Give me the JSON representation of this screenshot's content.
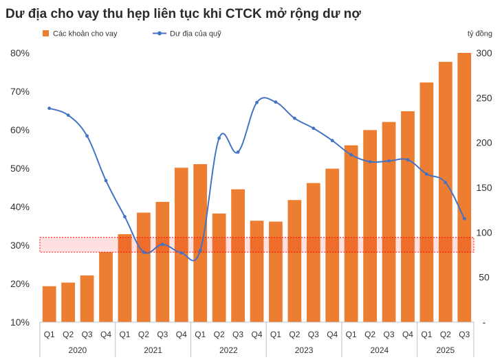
{
  "chart_data": {
    "type": "bar",
    "title": "Dư địa cho vay thu hẹp liên tục khi CTCK mở rộng dư nợ",
    "y2_unit_label": "tỷ đồng",
    "legend": [
      "Các khoản cho vay",
      "Dư địa của quỹ"
    ],
    "categories": [
      "Q1",
      "Q2",
      "Q3",
      "Q4",
      "Q1",
      "Q2",
      "Q3",
      "Q4",
      "Q1",
      "Q2",
      "Q3",
      "Q4",
      "Q1",
      "Q2",
      "Q3",
      "Q4",
      "Q1",
      "Q2",
      "Q3",
      "Q4",
      "Q1",
      "Q2",
      "Q3"
    ],
    "years": [
      {
        "label": "2020",
        "count": 4
      },
      {
        "label": "2021",
        "count": 4
      },
      {
        "label": "2022",
        "count": 4
      },
      {
        "label": "2023",
        "count": 4
      },
      {
        "label": "2024",
        "count": 4
      },
      {
        "label": "2025",
        "count": 3
      }
    ],
    "series": [
      {
        "name": "Các khoản cho vay",
        "type": "bar",
        "axis": "right",
        "color": "#ED7D31",
        "values": [
          40,
          44,
          52,
          78,
          98,
          122,
          134,
          172,
          176,
          121,
          148,
          113,
          112,
          136,
          155,
          171,
          197,
          214,
          223,
          235,
          267,
          290,
          300
        ]
      },
      {
        "name": "Dư địa của quỹ",
        "type": "line",
        "axis": "left",
        "color": "#4472C4",
        "values": [
          65.6,
          63.8,
          58.4,
          46.8,
          37.4,
          28.2,
          30.2,
          28.0,
          28.6,
          57.8,
          54.2,
          67.1,
          67.2,
          63.0,
          60.4,
          57.2,
          53.5,
          51.7,
          51.9,
          52.2,
          48.5,
          46.3,
          36.9
        ]
      }
    ],
    "y_left": {
      "min": 10,
      "max": 80,
      "ticks": [
        "10%",
        "20%",
        "30%",
        "40%",
        "50%",
        "60%",
        "70%",
        "80%"
      ]
    },
    "y_right": {
      "min": 0,
      "max": 300,
      "ticks": [
        "-",
        "50",
        "100",
        "150",
        "200",
        "250",
        "300"
      ]
    },
    "highlight_band": {
      "from": 28.2,
      "to": 32,
      "axis": "left",
      "color": "#ff0000"
    }
  }
}
